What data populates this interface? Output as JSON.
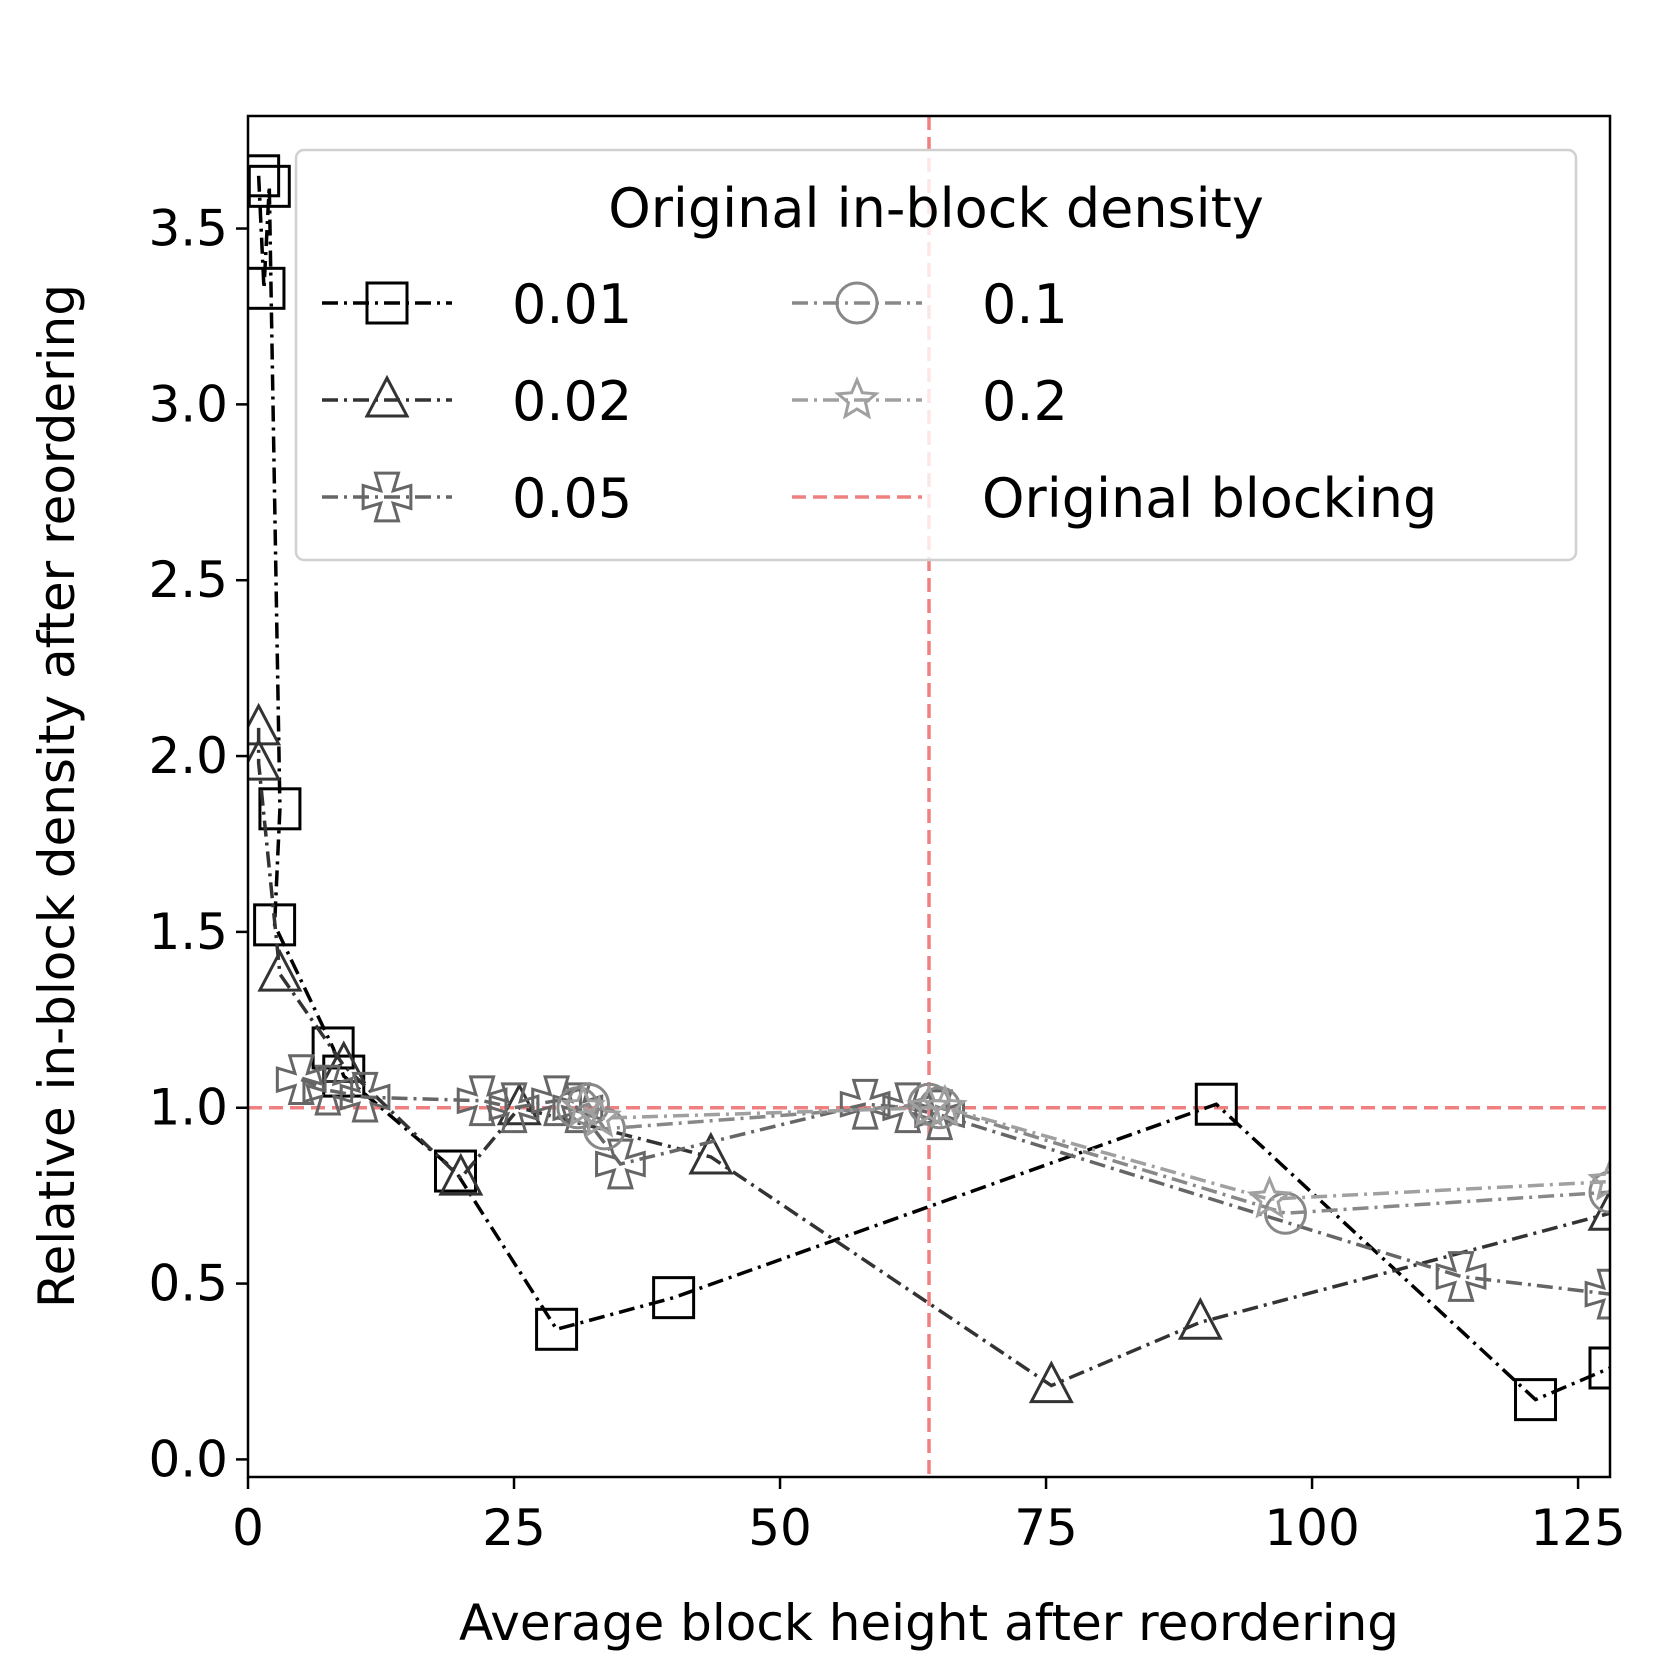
{
  "chart_data": {
    "type": "line",
    "xlabel": "Average block height after reordering",
    "ylabel": "Relative in-block density after reordering",
    "xlim": [
      0,
      128
    ],
    "ylim": [
      -0.05,
      3.82
    ],
    "xticks": [
      "0",
      "25",
      "50",
      "75",
      "100",
      "125"
    ],
    "yticks": [
      "0.0",
      "0.5",
      "1.0",
      "1.5",
      "2.0",
      "2.5",
      "3.0",
      "3.5"
    ],
    "legend_title": "Original in-block density",
    "legend_position": "upper right",
    "reference_lines": {
      "label": "Original blocking",
      "x": 64,
      "y": 1.0,
      "color": "#f08080"
    },
    "series": [
      {
        "name": "0.01",
        "marker": "square",
        "color": "#000000",
        "x": [
          1,
          1.5,
          2,
          3,
          2.5,
          8,
          9,
          19.5,
          29,
          40,
          91,
          121,
          128
        ],
        "y": [
          3.65,
          3.33,
          3.62,
          1.85,
          1.52,
          1.17,
          1.09,
          0.82,
          0.37,
          0.46,
          1.01,
          0.17,
          0.26
        ]
      },
      {
        "name": "0.02",
        "marker": "triangle",
        "color": "#333333",
        "x": [
          1,
          1,
          3,
          9,
          20,
          25.5,
          43.5,
          75.5,
          89.5,
          128
        ],
        "y": [
          2.08,
          1.98,
          1.38,
          1.12,
          0.8,
          1.0,
          0.86,
          0.21,
          0.39,
          0.7
        ]
      },
      {
        "name": "0.05",
        "marker": "thick-x",
        "color": "#666666",
        "x": [
          5,
          7.5,
          11,
          22,
          25,
          29,
          31,
          35,
          58,
          62,
          65,
          114,
          128
        ],
        "y": [
          1.08,
          1.05,
          1.03,
          1.02,
          1.0,
          1.02,
          1.0,
          0.84,
          1.01,
          1.0,
          0.98,
          0.52,
          0.47
        ]
      },
      {
        "name": "0.1",
        "marker": "circle",
        "color": "#888888",
        "x": [
          31,
          32,
          33.5,
          64,
          65,
          97.5,
          128
        ],
        "y": [
          1.0,
          1.01,
          0.94,
          1.01,
          1.0,
          0.7,
          0.76
        ]
      },
      {
        "name": "0.2",
        "marker": "star",
        "color": "#a0a0a0",
        "x": [
          31.5,
          33,
          64,
          65.5,
          96,
          128
        ],
        "y": [
          1.0,
          0.97,
          1.0,
          1.0,
          0.74,
          0.79
        ]
      }
    ]
  }
}
